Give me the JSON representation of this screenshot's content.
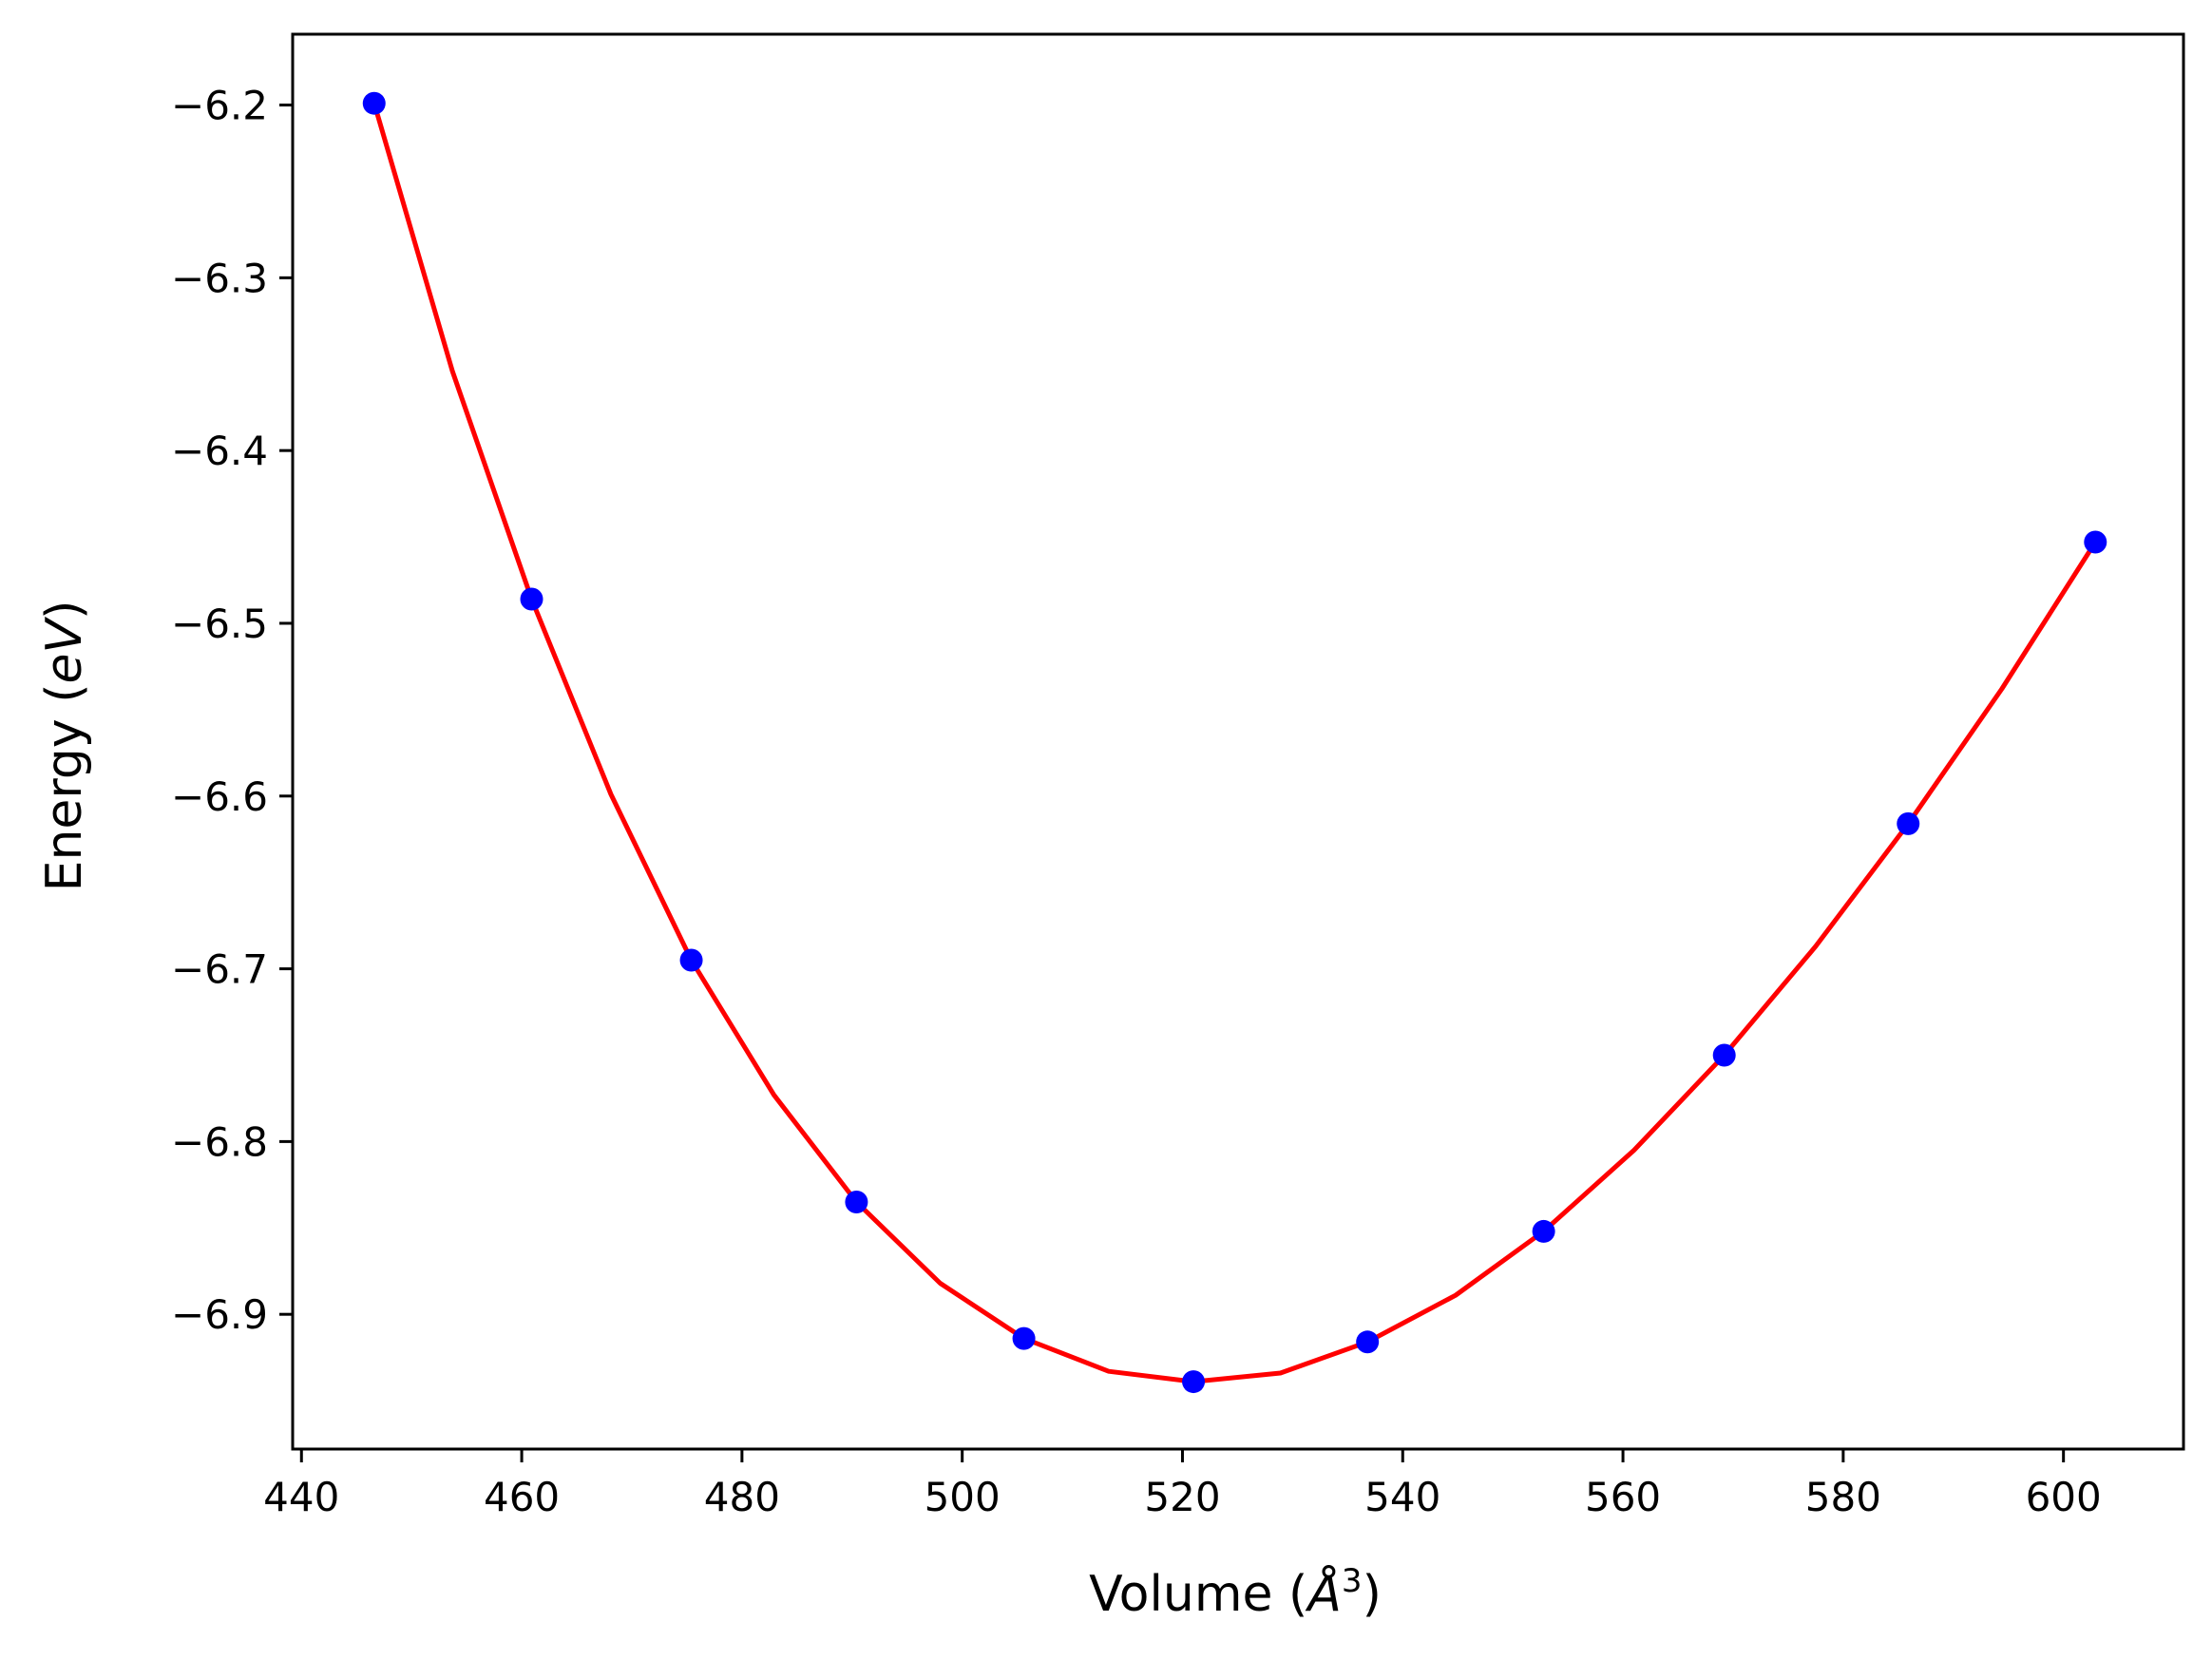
{
  "chart_data": {
    "type": "scatter",
    "title": "",
    "xlabel": "Volume (",
    "xlabel_symbol": "Å",
    "xlabel_exp": "3",
    "xlabel_close": ")",
    "ylabel": "Energy (",
    "ylabel_unit": "eV",
    "ylabel_close": ")",
    "xlim": [
      439.2,
      610.9
    ],
    "ylim": [
      -6.978,
      -6.159
    ],
    "x_ticks": [
      440,
      460,
      480,
      500,
      520,
      540,
      560,
      580,
      600
    ],
    "x_tick_labels": [
      "440",
      "460",
      "480",
      "500",
      "520",
      "540",
      "560",
      "580",
      "600"
    ],
    "y_ticks": [
      -6.2,
      -6.3,
      -6.4,
      -6.5,
      -6.6,
      -6.7,
      -6.8,
      -6.9
    ],
    "y_tick_labels": [
      "−6.2",
      "−6.3",
      "−6.4",
      "−6.5",
      "−6.6",
      "−6.7",
      "−6.8",
      "−6.9"
    ],
    "grid": false,
    "series": [
      {
        "kind": "points",
        "color": "#0000ff",
        "x": [
          446.6,
          460.9,
          475.4,
          490.4,
          505.6,
          521.0,
          536.8,
          552.8,
          569.2,
          585.9,
          602.9
        ],
        "y": [
          -6.199,
          -6.486,
          -6.695,
          -6.835,
          -6.914,
          -6.939,
          -6.916,
          -6.852,
          -6.75,
          -6.616,
          -6.453
        ]
      },
      {
        "kind": "fit-curve",
        "color": "#ff0000",
        "x": [
          446.6,
          453.7,
          460.9,
          468.1,
          475.4,
          482.9,
          490.4,
          498.0,
          505.6,
          513.3,
          521.0,
          528.9,
          536.8,
          544.8,
          552.8,
          561.0,
          569.2,
          577.5,
          585.9,
          594.4,
          602.9
        ],
        "y": [
          -6.199,
          -6.354,
          -6.486,
          -6.599,
          -6.695,
          -6.773,
          -6.835,
          -6.882,
          -6.914,
          -6.933,
          -6.939,
          -6.934,
          -6.916,
          -6.889,
          -6.852,
          -6.805,
          -6.75,
          -6.687,
          -6.616,
          -6.538,
          -6.453
        ]
      }
    ]
  }
}
